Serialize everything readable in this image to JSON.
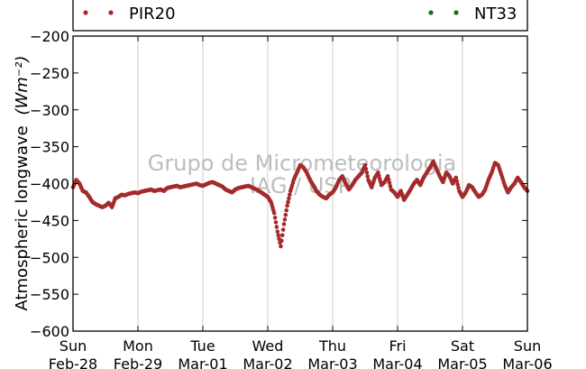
{
  "chart_data": {
    "type": "scatter",
    "ylabel": "Atmospheric longwave",
    "ylabel_units": "(Wm⁻²)",
    "ylim": [
      -600,
      -200
    ],
    "y_ticks": [
      -200,
      -250,
      -300,
      -350,
      -400,
      -450,
      -500,
      -550,
      -600
    ],
    "x_ticks": [
      {
        "day": "Sun",
        "date": "Feb-28"
      },
      {
        "day": "Mon",
        "date": "Feb-29"
      },
      {
        "day": "Tue",
        "date": "Mar-01"
      },
      {
        "day": "Wed",
        "date": "Mar-02"
      },
      {
        "day": "Thu",
        "date": "Mar-03"
      },
      {
        "day": "Fri",
        "date": "Mar-04"
      },
      {
        "day": "Sat",
        "date": "Mar-05"
      },
      {
        "day": "Sun",
        "date": "Mar-06"
      }
    ],
    "xlim": [
      "Feb-28",
      "Mar-06"
    ],
    "grid": "vertical",
    "legend_position": "top",
    "watermark": [
      "Grupo de Micrometeorologia",
      "IAG / USP"
    ],
    "series": [
      {
        "name": "PIR20",
        "color": "#a52a2a",
        "x_day": [
          0,
          0.05,
          0.1,
          0.15,
          0.2,
          0.25,
          0.3,
          0.35,
          0.4,
          0.45,
          0.5,
          0.55,
          0.6,
          0.65,
          0.7,
          0.75,
          0.8,
          0.85,
          0.9,
          0.95,
          1.0,
          1.05,
          1.1,
          1.15,
          1.2,
          1.25,
          1.3,
          1.35,
          1.4,
          1.45,
          1.5,
          1.55,
          1.6,
          1.65,
          1.7,
          1.75,
          1.8,
          1.85,
          1.9,
          1.95,
          2.0,
          2.05,
          2.1,
          2.15,
          2.2,
          2.25,
          2.3,
          2.35,
          2.4,
          2.45,
          2.5,
          2.55,
          2.6,
          2.65,
          2.7,
          2.75,
          2.8,
          2.85,
          2.9,
          2.95,
          3.0,
          3.05,
          3.1,
          3.15,
          3.2,
          3.25,
          3.3,
          3.35,
          3.4,
          3.45,
          3.5,
          3.55,
          3.6,
          3.65,
          3.7,
          3.75,
          3.8,
          3.85,
          3.9,
          3.95,
          4.0,
          4.05,
          4.1,
          4.15,
          4.2,
          4.25,
          4.3,
          4.35,
          4.4,
          4.45,
          4.5,
          4.55,
          4.6,
          4.65,
          4.7,
          4.75,
          4.8,
          4.85,
          4.9,
          4.95,
          5.0,
          5.05,
          5.1,
          5.15,
          5.2,
          5.25,
          5.3,
          5.35,
          5.4,
          5.45,
          5.5,
          5.55,
          5.6,
          5.65,
          5.7,
          5.75,
          5.8,
          5.85,
          5.9,
          5.95,
          6.0,
          6.05,
          6.1,
          6.15,
          6.2,
          6.25,
          6.3,
          6.35,
          6.4,
          6.45,
          6.5,
          6.55,
          6.6,
          6.65,
          6.7,
          6.75,
          6.8,
          6.85,
          6.9,
          6.95,
          7.0
        ],
        "values": [
          -405,
          -395,
          -400,
          -410,
          -412,
          -418,
          -425,
          -428,
          -430,
          -432,
          -430,
          -426,
          -432,
          -420,
          -418,
          -415,
          -416,
          -414,
          -413,
          -412,
          -413,
          -411,
          -410,
          -409,
          -408,
          -410,
          -409,
          -408,
          -410,
          -406,
          -405,
          -404,
          -403,
          -405,
          -404,
          -403,
          -402,
          -401,
          -400,
          -402,
          -403,
          -401,
          -399,
          -398,
          -400,
          -402,
          -404,
          -408,
          -410,
          -412,
          -408,
          -406,
          -405,
          -404,
          -403,
          -405,
          -407,
          -409,
          -412,
          -415,
          -418,
          -425,
          -440,
          -465,
          -485,
          -455,
          -430,
          -410,
          -395,
          -385,
          -375,
          -378,
          -385,
          -395,
          -402,
          -410,
          -415,
          -418,
          -420,
          -415,
          -412,
          -405,
          -395,
          -390,
          -400,
          -408,
          -402,
          -395,
          -390,
          -385,
          -375,
          -395,
          -405,
          -392,
          -385,
          -402,
          -398,
          -390,
          -408,
          -412,
          -418,
          -410,
          -422,
          -415,
          -408,
          -400,
          -395,
          -402,
          -392,
          -385,
          -378,
          -370,
          -380,
          -390,
          -398,
          -385,
          -390,
          -400,
          -392,
          -410,
          -418,
          -412,
          -402,
          -405,
          -412,
          -418,
          -415,
          -408,
          -395,
          -385,
          -372,
          -375,
          -388,
          -402,
          -412,
          -405,
          -400,
          -392,
          -398,
          -405,
          -410
        ]
      },
      {
        "name": "NT33",
        "color": "#1a6b1a",
        "x_day": [],
        "values": []
      }
    ]
  }
}
